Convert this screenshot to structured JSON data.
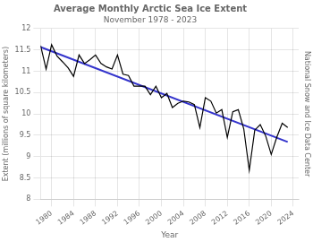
{
  "chart_data": {
    "type": "line",
    "title": "Average Monthly Arctic Sea Ice Extent",
    "subtitle": "November 1978 - 2023",
    "x_label": "Year",
    "y_label": "Extent (millions of square kilometers)",
    "annotation": "National Snow and Ice Data Center",
    "xlim": [
      1978,
      2025
    ],
    "xticks": [
      1980,
      1984,
      1988,
      1992,
      1996,
      2000,
      2004,
      2008,
      2012,
      2016,
      2020,
      2024
    ],
    "ylim": [
      8,
      12
    ],
    "yticks": [
      8,
      8.5,
      9,
      9.5,
      10,
      10.5,
      11,
      11.5,
      12
    ],
    "grid": true,
    "series": [
      {
        "color": "#000000",
        "x": [
          1978,
          1979,
          1980,
          1981,
          1982,
          1983,
          1984,
          1985,
          1986,
          1987,
          1988,
          1989,
          1990,
          1991,
          1992,
          1993,
          1994,
          1995,
          1996,
          1997,
          1998,
          1999,
          2000,
          2001,
          2002,
          2003,
          2004,
          2005,
          2006,
          2007,
          2008,
          2009,
          2010,
          2011,
          2012,
          2013,
          2014,
          2015,
          2016,
          2017,
          2018,
          2019,
          2020,
          2021,
          2022,
          2023
        ],
        "values": [
          11.6,
          11.05,
          11.62,
          11.35,
          11.22,
          11.08,
          10.88,
          11.38,
          11.18,
          11.27,
          11.38,
          11.18,
          11.1,
          11.05,
          11.38,
          10.93,
          10.9,
          10.65,
          10.65,
          10.65,
          10.45,
          10.65,
          10.38,
          10.48,
          10.15,
          10.25,
          10.3,
          10.28,
          10.22,
          9.68,
          10.38,
          10.3,
          10.02,
          10.1,
          9.45,
          10.05,
          10.1,
          9.65,
          8.68,
          9.62,
          9.75,
          9.48,
          9.05,
          9.45,
          9.78,
          9.68
        ]
      },
      {
        "color": "#3333cc",
        "x": [
          1978,
          2023
        ],
        "values": [
          11.56516,
          9.34266
        ]
      }
    ]
  }
}
